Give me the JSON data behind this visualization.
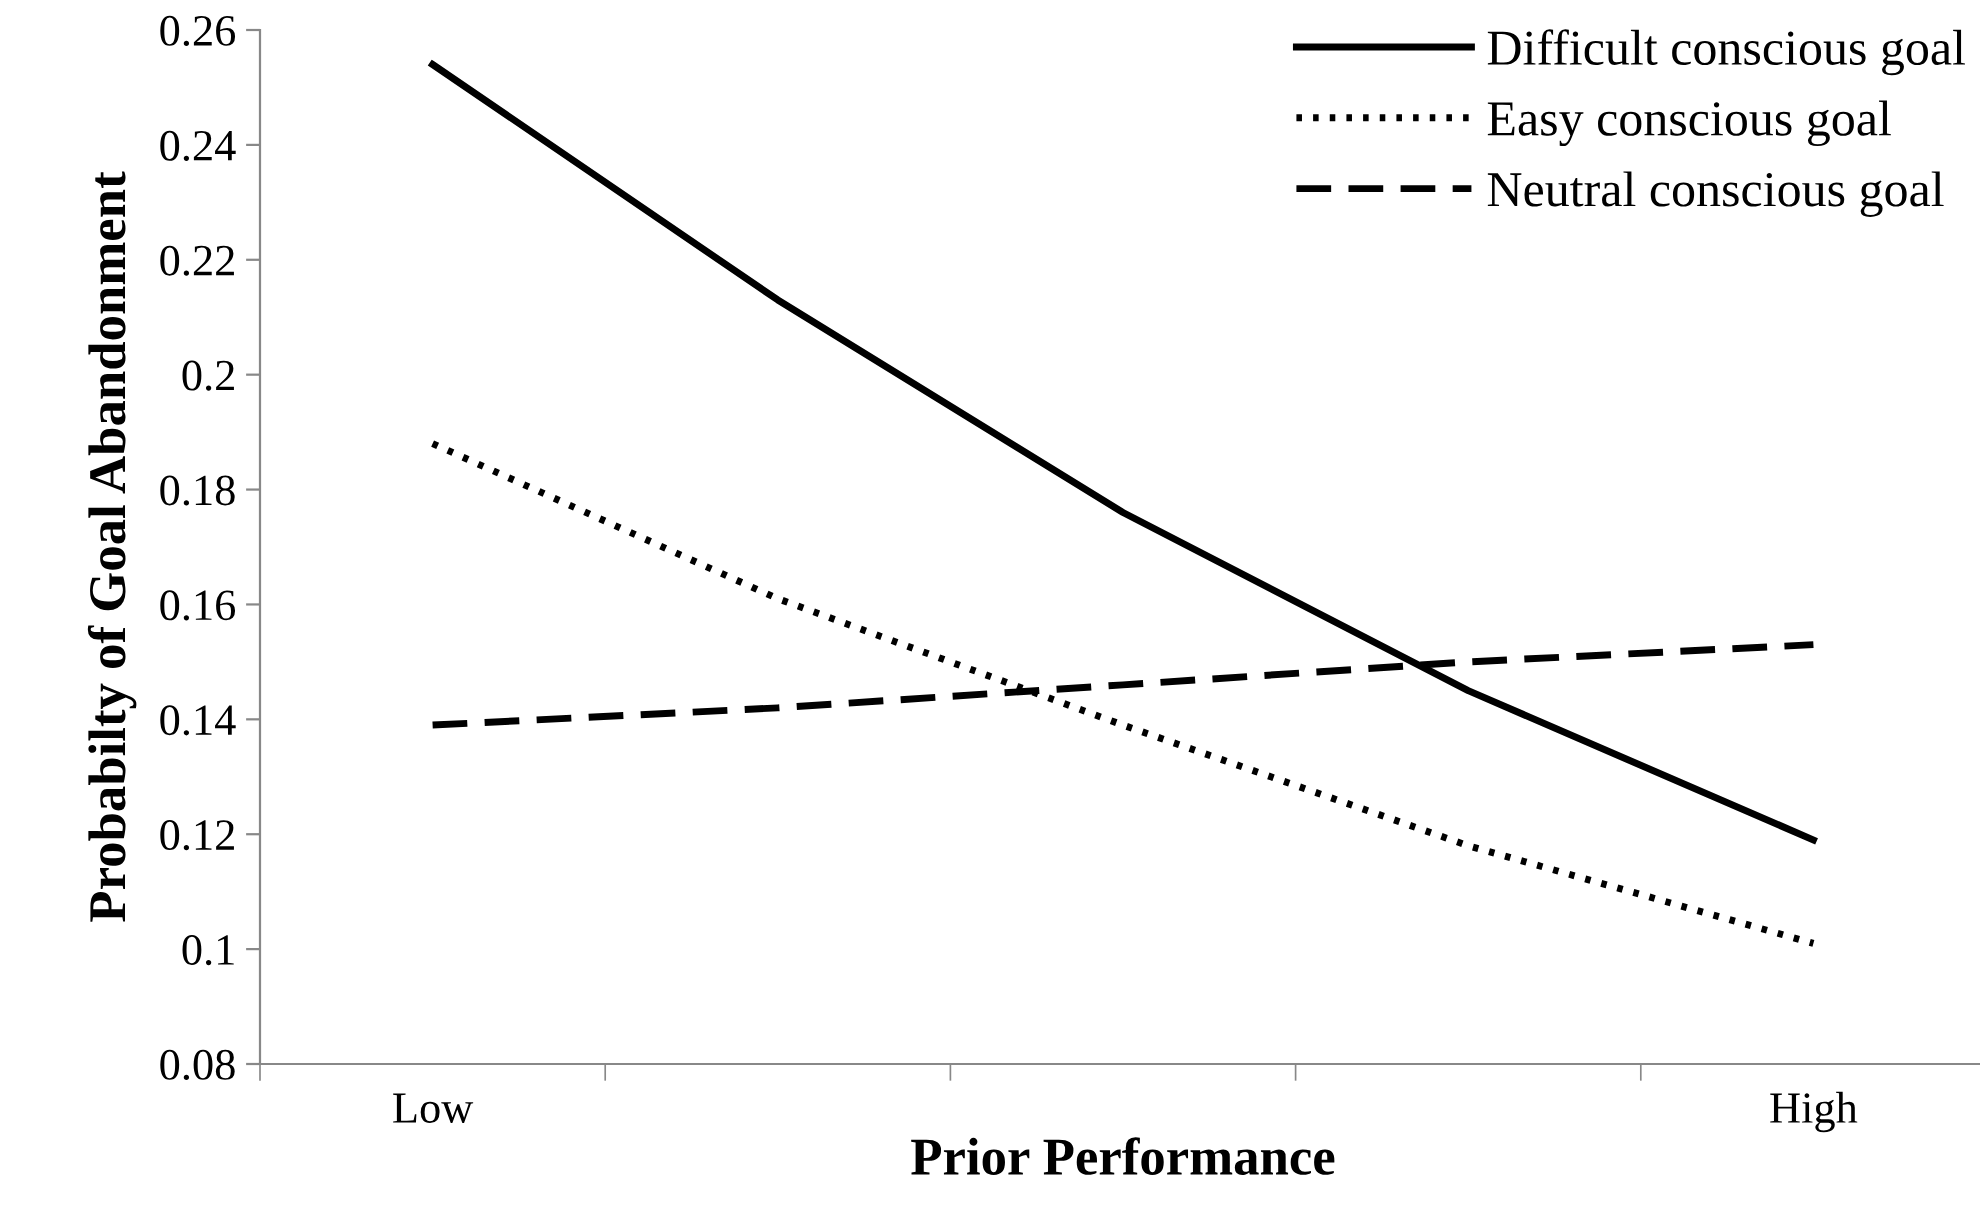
{
  "chart_data": {
    "type": "line",
    "xlabel": "Prior Performance",
    "ylabel": "Probabilty of Goal Abandonment",
    "categories": [
      "Low",
      null,
      null,
      null,
      "High"
    ],
    "series": [
      {
        "name": "Difficult conscious goal",
        "color": "#000000",
        "line_style": "solid",
        "values": [
          0.254,
          0.213,
          0.176,
          0.145,
          0.119
        ]
      },
      {
        "name": "Easy conscious goal",
        "color": "#000000",
        "line_style": "dotted",
        "values": [
          0.188,
          0.161,
          0.139,
          0.118,
          0.101
        ]
      },
      {
        "name": "Neutral conscious goal",
        "color": "#000000",
        "line_style": "dashed",
        "values": [
          0.139,
          0.142,
          0.146,
          0.15,
          0.153
        ]
      }
    ],
    "ylim": [
      0.08,
      0.26
    ],
    "yticks": [
      0.08,
      {
        "value": 0.1,
        "label": "0.1"
      },
      0.12,
      0.14,
      0.16,
      0.18,
      {
        "value": 0.2,
        "label": "0.2"
      },
      0.22,
      0.24,
      0.26
    ],
    "grid": false,
    "legend": "top right",
    "marker": "none"
  }
}
